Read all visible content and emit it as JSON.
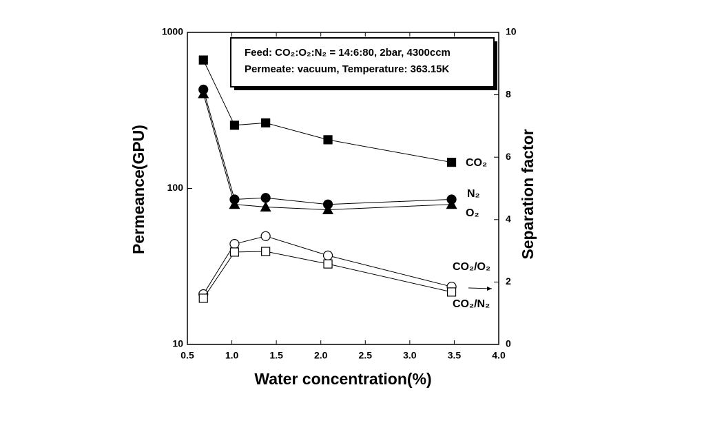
{
  "chart_data": {
    "type": "line",
    "annotation": [
      "Feed: CO₂:O₂:N₂ = 14:6:80, 2bar, 4300ccm",
      "Permeate: vacuum, Temperature: 363.15K"
    ],
    "x_label": "Water concentration(%)",
    "y_label": "Permeance(GPU)",
    "y2_label": "Separation factor",
    "x": [
      0.68,
      1.03,
      1.38,
      2.08,
      3.47
    ],
    "xlim": [
      0.5,
      4.0
    ],
    "xticks": [
      {
        "value": 0.5,
        "label": "0.5"
      },
      {
        "value": 1.0,
        "label": "1.0"
      },
      {
        "value": 1.5,
        "label": "1.5"
      },
      {
        "value": 2.0,
        "label": "2.0"
      },
      {
        "value": 2.5,
        "label": "2.5"
      },
      {
        "value": 3.0,
        "label": "3.0"
      },
      {
        "value": 3.5,
        "label": "3.5"
      },
      {
        "value": 4.0,
        "label": "4.0"
      }
    ],
    "ylim": [
      10,
      1000
    ],
    "yticks": [
      10,
      100,
      1000
    ],
    "y_log": true,
    "y2lim": [
      0,
      10
    ],
    "y2ticks": [
      0,
      2,
      4,
      6,
      8,
      10
    ],
    "series": [
      {
        "name": "CO₂",
        "color": "#000000",
        "marker": "square",
        "filled": true,
        "axis": "y",
        "values": [
          665,
          254,
          263,
          205,
          147
        ]
      },
      {
        "name": "N₂",
        "color": "#000000",
        "marker": "circle",
        "filled": true,
        "axis": "y",
        "values": [
          430,
          85,
          87,
          79,
          85
        ]
      },
      {
        "name": "O₂",
        "color": "#000000",
        "marker": "triangle",
        "filled": true,
        "axis": "y",
        "values": [
          405,
          79,
          76,
          73,
          79
        ]
      },
      {
        "name": "CO₂/O₂",
        "color": "#000000",
        "marker": "circle",
        "filled": false,
        "axis": "y2",
        "values": [
          1.61,
          3.22,
          3.47,
          2.85,
          1.85
        ]
      },
      {
        "name": "CO₂/N₂",
        "color": "#000000",
        "marker": "square",
        "filled": false,
        "axis": "y2",
        "values": [
          1.48,
          2.96,
          2.98,
          2.58,
          1.68
        ]
      }
    ]
  }
}
